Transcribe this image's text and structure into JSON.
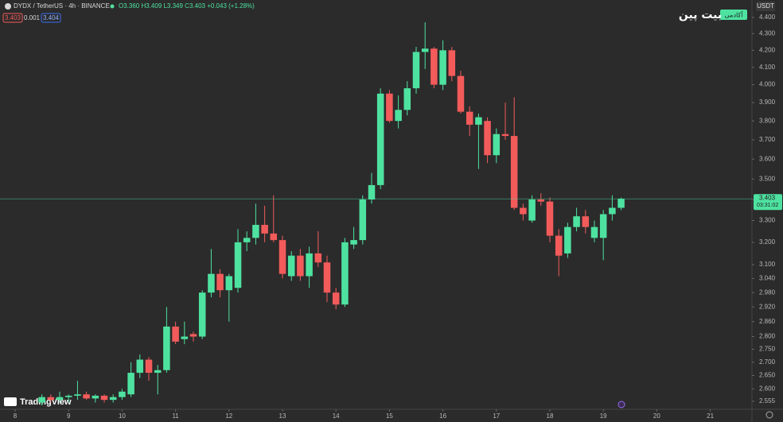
{
  "header": {
    "symbol": "DYDX / TetherUS · 4h · BINANCE",
    "ohlc": "O3.360 H3.409 L3.349 C3.403 +0.043 (+1.28%)",
    "bid": "3.403",
    "spread": "0.001",
    "ask": "3.404",
    "currency": "USDT",
    "logo": "TradingView",
    "watermark": "بیت پین",
    "watermark_badge": "آکادمی"
  },
  "chart_data": {
    "type": "candlestick",
    "log_scale": true,
    "up_color": "#4ee2a0",
    "down_color": "#f35b5b",
    "xlim": [
      7.717,
      21.78
    ],
    "xticks": [
      8,
      9,
      10,
      11,
      12,
      13,
      14,
      15,
      16,
      17,
      18,
      19,
      20,
      21
    ],
    "ylim": [
      2.526,
      4.51
    ],
    "yticks": [
      {
        "value": 2.555,
        "label": "2.555"
      },
      {
        "value": 2.6,
        "label": "2.600"
      },
      {
        "value": 2.65,
        "label": "2.650"
      },
      {
        "value": 2.7,
        "label": "2.700"
      },
      {
        "value": 2.75,
        "label": "2.750"
      },
      {
        "value": 2.8,
        "label": "2.800"
      },
      {
        "value": 2.86,
        "label": "2.860"
      },
      {
        "value": 2.92,
        "label": "2.920"
      },
      {
        "value": 2.98,
        "label": "2.980"
      },
      {
        "value": 3.04,
        "label": "3.040"
      },
      {
        "value": 3.1,
        "label": "3.100"
      },
      {
        "value": 3.2,
        "label": "3.200"
      },
      {
        "value": 3.3,
        "label": "3.300"
      },
      {
        "value": 3.4,
        "label": "3.400"
      },
      {
        "value": 3.5,
        "label": "3.500"
      },
      {
        "value": 3.6,
        "label": "3.600"
      },
      {
        "value": 3.7,
        "label": "3.700"
      },
      {
        "value": 3.8,
        "label": "3.800"
      },
      {
        "value": 3.9,
        "label": "3.900"
      },
      {
        "value": 4.0,
        "label": "4.000"
      },
      {
        "value": 4.1,
        "label": "4.100"
      },
      {
        "value": 4.2,
        "label": "4.200"
      },
      {
        "value": 4.3,
        "label": "4.300"
      },
      {
        "value": 4.4,
        "label": "4.400"
      }
    ],
    "x": [
      8.5,
      8.667,
      8.833,
      9,
      9.167,
      9.333,
      9.5,
      9.667,
      9.833,
      10,
      10.167,
      10.333,
      10.5,
      10.667,
      10.833,
      11,
      11.167,
      11.333,
      11.5,
      11.667,
      11.833,
      12,
      12.167,
      12.333,
      12.5,
      12.667,
      12.833,
      13,
      13.167,
      13.333,
      13.5,
      13.667,
      13.833,
      14,
      14.167,
      14.333,
      14.5,
      14.667,
      14.833,
      15,
      15.167,
      15.333,
      15.5,
      15.667,
      15.833,
      16,
      16.167,
      16.333,
      16.5,
      16.667,
      16.833,
      17,
      17.167,
      17.333,
      17.5,
      17.667,
      17.833,
      18,
      18.167,
      18.333,
      18.5,
      18.667,
      18.833,
      19,
      19.167,
      19.333
    ],
    "open": [
      2.55,
      2.57,
      2.56,
      2.57,
      2.575,
      2.58,
      2.565,
      2.575,
      2.56,
      2.57,
      2.58,
      2.66,
      2.71,
      2.66,
      2.67,
      2.84,
      2.79,
      2.81,
      2.8,
      2.98,
      3.06,
      2.99,
      3.0,
      3.2,
      3.22,
      3.28,
      3.24,
      3.21,
      3.05,
      3.14,
      3.05,
      3.15,
      3.11,
      2.98,
      2.93,
      3.19,
      3.21,
      3.4,
      3.47,
      3.95,
      3.8,
      3.86,
      3.98,
      4.19,
      4.21,
      4.0,
      4.2,
      4.05,
      3.85,
      3.78,
      3.8,
      3.62,
      3.73,
      3.72,
      3.36,
      3.3,
      3.4,
      3.39,
      3.23,
      3.15,
      3.27,
      3.32,
      3.22,
      3.22,
      3.33,
      3.36
    ],
    "high": [
      2.58,
      2.58,
      2.59,
      2.58,
      2.63,
      2.59,
      2.58,
      2.58,
      2.58,
      2.6,
      2.7,
      2.73,
      2.72,
      2.69,
      2.92,
      2.86,
      2.86,
      2.82,
      2.99,
      3.17,
      3.08,
      3.06,
      3.26,
      3.25,
      3.38,
      3.37,
      3.42,
      3.23,
      3.16,
      3.17,
      3.18,
      3.25,
      3.14,
      3.0,
      3.22,
      3.27,
      3.42,
      3.53,
      3.98,
      3.97,
      3.94,
      4.02,
      4.22,
      4.37,
      4.22,
      4.26,
      4.22,
      4.08,
      3.88,
      3.84,
      3.82,
      3.76,
      3.9,
      3.93,
      3.38,
      3.42,
      3.43,
      3.41,
      3.26,
      3.29,
      3.36,
      3.35,
      3.3,
      3.35,
      3.42,
      3.409
    ],
    "low": [
      2.54,
      2.55,
      2.55,
      2.55,
      2.56,
      2.56,
      2.55,
      2.55,
      2.55,
      2.56,
      2.57,
      2.64,
      2.63,
      2.58,
      2.66,
      2.77,
      2.77,
      2.78,
      2.79,
      2.96,
      2.96,
      2.86,
      2.98,
      3.16,
      3.19,
      3.2,
      3.2,
      3.04,
      3.03,
      3.03,
      3.0,
      3.09,
      2.94,
      2.91,
      2.92,
      3.17,
      3.19,
      3.38,
      3.45,
      3.79,
      3.76,
      3.83,
      3.95,
      4.09,
      3.98,
      3.97,
      4.02,
      3.84,
      3.72,
      3.55,
      3.58,
      3.58,
      3.7,
      3.35,
      3.3,
      3.29,
      3.37,
      3.2,
      3.05,
      3.13,
      3.25,
      3.24,
      3.2,
      3.12,
      3.3,
      3.349
    ],
    "close": [
      2.57,
      2.56,
      2.57,
      2.575,
      2.58,
      2.565,
      2.575,
      2.56,
      2.57,
      2.59,
      2.66,
      2.71,
      2.66,
      2.67,
      2.84,
      2.78,
      2.8,
      2.8,
      2.98,
      3.06,
      2.99,
      3.05,
      3.2,
      3.22,
      3.28,
      3.24,
      3.21,
      3.06,
      3.14,
      3.05,
      3.15,
      3.11,
      2.98,
      2.93,
      3.2,
      3.21,
      3.4,
      3.47,
      3.95,
      3.8,
      3.86,
      3.98,
      4.19,
      4.21,
      4.0,
      4.2,
      4.05,
      3.85,
      3.78,
      3.82,
      3.62,
      3.73,
      3.72,
      3.36,
      3.33,
      3.4,
      3.39,
      3.23,
      3.14,
      3.27,
      3.32,
      3.27,
      3.27,
      3.33,
      3.36,
      3.403
    ],
    "last_price": 3.403,
    "countdown": "03:31:02"
  }
}
